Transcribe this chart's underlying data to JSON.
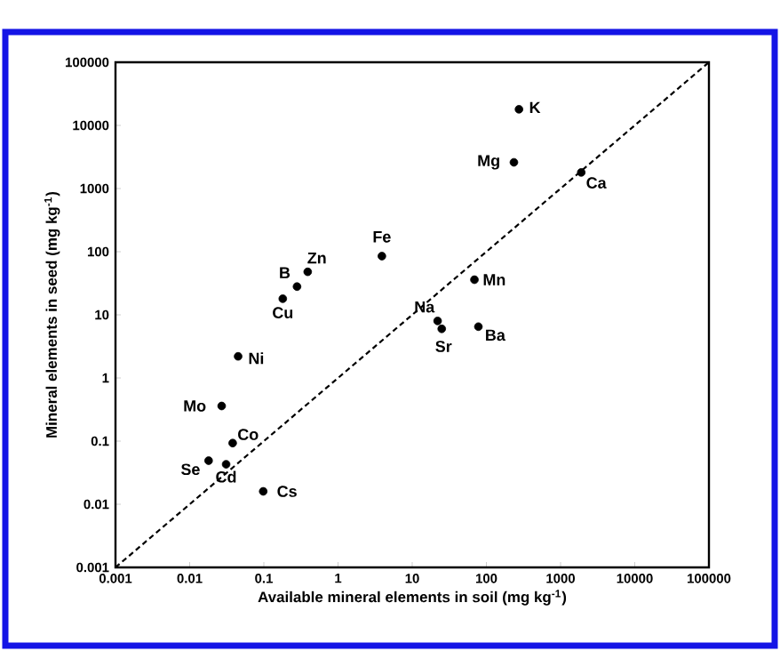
{
  "chart_data": {
    "type": "scatter",
    "xlabel": "Available mineral elements in soil (mg kg$^{-1}$)",
    "ylabel": "Mineral elements in seed (mg kg$^{-1}$)",
    "log": "xy",
    "xlim": [
      0.001,
      100000
    ],
    "ylim": [
      0.001,
      100000
    ],
    "xticks": [
      0.001,
      0.01,
      0.1,
      1,
      10,
      100,
      1000,
      10000,
      100000
    ],
    "yticks": [
      0.001,
      0.01,
      0.1,
      1,
      10,
      100,
      1000,
      10000,
      100000
    ],
    "series": [
      {
        "color": "#000000",
        "marker": "circle",
        "x": [
          275,
          235,
          1900,
          3.9,
          0.39,
          0.28,
          0.18,
          69,
          22,
          25,
          78,
          0.045,
          0.027,
          0.038,
          0.018,
          0.031,
          0.098
        ],
        "values": [
          18000,
          2600,
          1800,
          85,
          48,
          28,
          18,
          36,
          8,
          6,
          6.5,
          2.2,
          0.36,
          0.093,
          0.049,
          0.043,
          0.016
        ]
      },
      {
        "type": "line",
        "color": "#000000",
        "marker": "none",
        "line_style": "dashed",
        "x": [
          0.001,
          100000
        ],
        "values": [
          0.001,
          100000
        ]
      }
    ],
    "annotations": [
      {
        "text": "K",
        "x": 275,
        "y": 18000
      },
      {
        "text": "Mg",
        "x": 235,
        "y": 2600
      },
      {
        "text": "Ca",
        "x": 1900,
        "y": 1800
      },
      {
        "text": "Fe",
        "x": 3.9,
        "y": 85
      },
      {
        "text": "Zn",
        "x": 0.39,
        "y": 48
      },
      {
        "text": "B",
        "x": 0.28,
        "y": 28
      },
      {
        "text": "Cu",
        "x": 0.18,
        "y": 18
      },
      {
        "text": "Mn",
        "x": 69,
        "y": 36
      },
      {
        "text": "Na",
        "x": 22,
        "y": 8
      },
      {
        "text": "Sr",
        "x": 25,
        "y": 6
      },
      {
        "text": "Ba",
        "x": 78,
        "y": 6.5
      },
      {
        "text": "Ni",
        "x": 0.045,
        "y": 2.2
      },
      {
        "text": "Mo",
        "x": 0.027,
        "y": 0.36
      },
      {
        "text": "Co",
        "x": 0.038,
        "y": 0.093
      },
      {
        "text": "Se",
        "x": 0.018,
        "y": 0.049
      },
      {
        "text": "Cd",
        "x": 0.031,
        "y": 0.043
      },
      {
        "text": "Cs",
        "x": 0.098,
        "y": 0.016
      }
    ]
  }
}
